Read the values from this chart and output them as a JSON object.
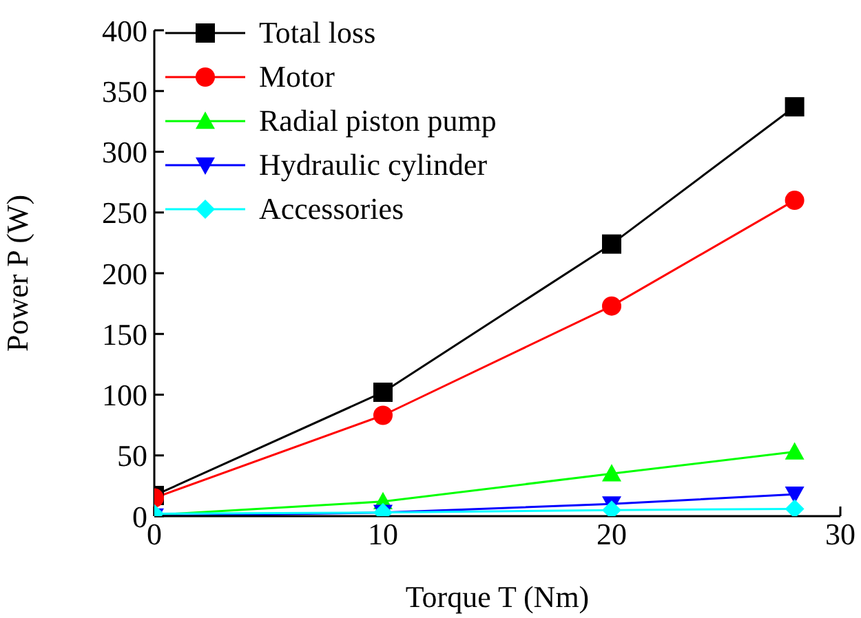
{
  "chart_data": {
    "type": "line",
    "xlabel": "Torque T (Nm)",
    "ylabel": "Power P (W)",
    "x": [
      0,
      10,
      20,
      28
    ],
    "series": [
      {
        "name": "Total loss",
        "color": "#000000",
        "marker": "square",
        "values": [
          17,
          102,
          224,
          337
        ]
      },
      {
        "name": "Motor",
        "color": "#ff0000",
        "marker": "circle",
        "values": [
          15,
          83,
          173,
          260
        ]
      },
      {
        "name": "Radial piston pump",
        "color": "#00ff00",
        "marker": "triangle",
        "values": [
          1,
          12,
          35,
          53
        ]
      },
      {
        "name": "Hydraulic cylinder",
        "color": "#0000ff",
        "marker": "triangle-down",
        "values": [
          0,
          3,
          10,
          18
        ]
      },
      {
        "name": "Accessories",
        "color": "#00ffff",
        "marker": "diamond",
        "values": [
          2,
          3,
          5,
          6
        ]
      }
    ],
    "xlim": [
      0,
      30
    ],
    "xticks": [
      0,
      10,
      20,
      30
    ],
    "ylim": [
      0,
      400
    ],
    "yticks": [
      0,
      50,
      100,
      150,
      200,
      250,
      300,
      350,
      400
    ],
    "grid": false,
    "legend": "top left",
    "line_style": "solid"
  }
}
